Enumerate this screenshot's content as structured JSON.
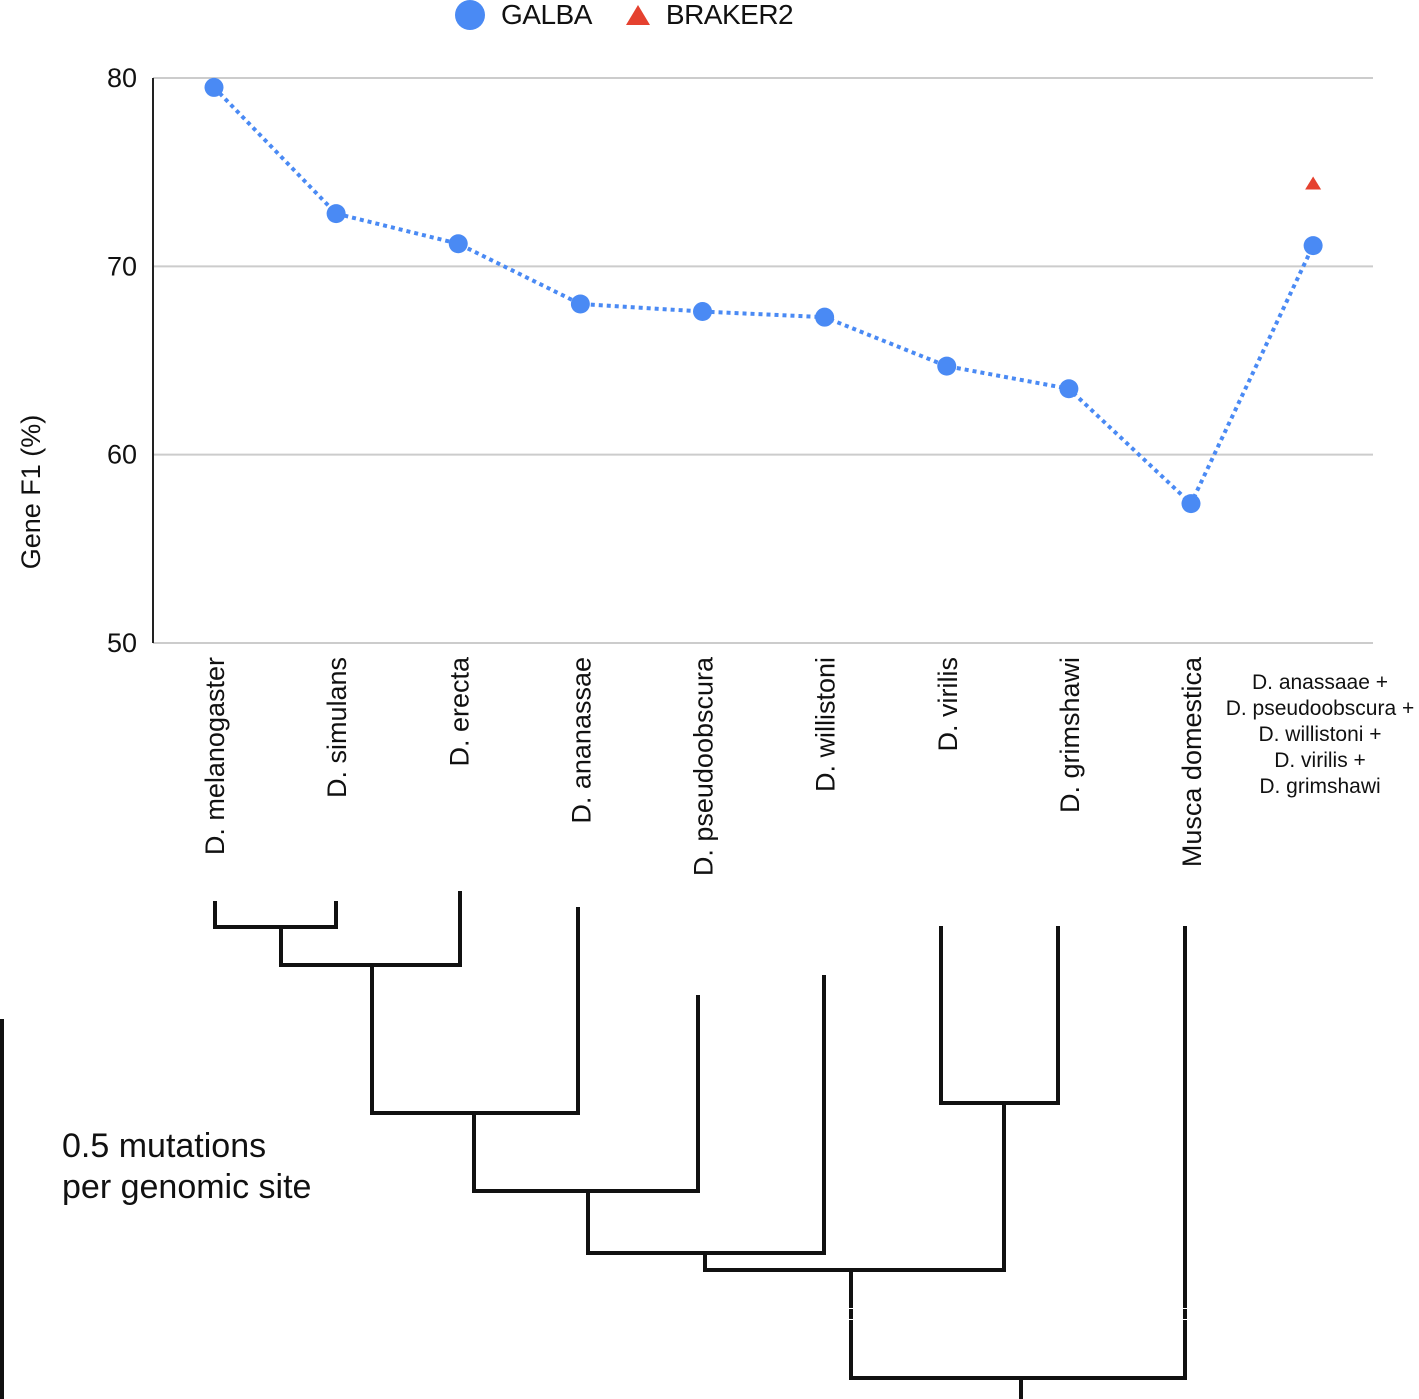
{
  "legend": {
    "galba_label": "GALBA",
    "braker2_label": "BRAKER2"
  },
  "chart_data": {
    "type": "line",
    "ylabel": "Gene F1 (%)",
    "xlabel": "",
    "ylim": [
      50,
      80
    ],
    "yticks": [
      "50",
      "60",
      "70",
      "80"
    ],
    "grid": true,
    "categories": [
      "D. melanogaster",
      "D. simulans",
      "D. erecta",
      "D. ananassae",
      "D. pseudoobscura",
      "D. willistoni",
      "D. virilis",
      "D. grimshawi",
      "Musca domestica",
      "D. anassaae + D. pseudoobscura + D. willistoni + D. virilis + D. grimshawi"
    ],
    "combined_label_lines": [
      "D. anassaae +",
      "D. pseudoobscura +",
      "D. willistoni +",
      "D. virilis +",
      "D. grimshawi"
    ],
    "series": [
      {
        "name": "GALBA",
        "marker": "circle",
        "color": "#4a8af4",
        "linestyle": "dotted",
        "values": [
          79.5,
          72.8,
          71.2,
          68.0,
          67.6,
          67.3,
          64.7,
          63.5,
          57.4,
          71.1
        ]
      },
      {
        "name": "BRAKER2",
        "marker": "triangle",
        "color": "#e5412f",
        "values": [
          null,
          null,
          null,
          null,
          null,
          null,
          null,
          null,
          null,
          74.4
        ]
      }
    ]
  },
  "phylogeny": {
    "scale_bar_label": "0.5 mutations per genomic site"
  }
}
